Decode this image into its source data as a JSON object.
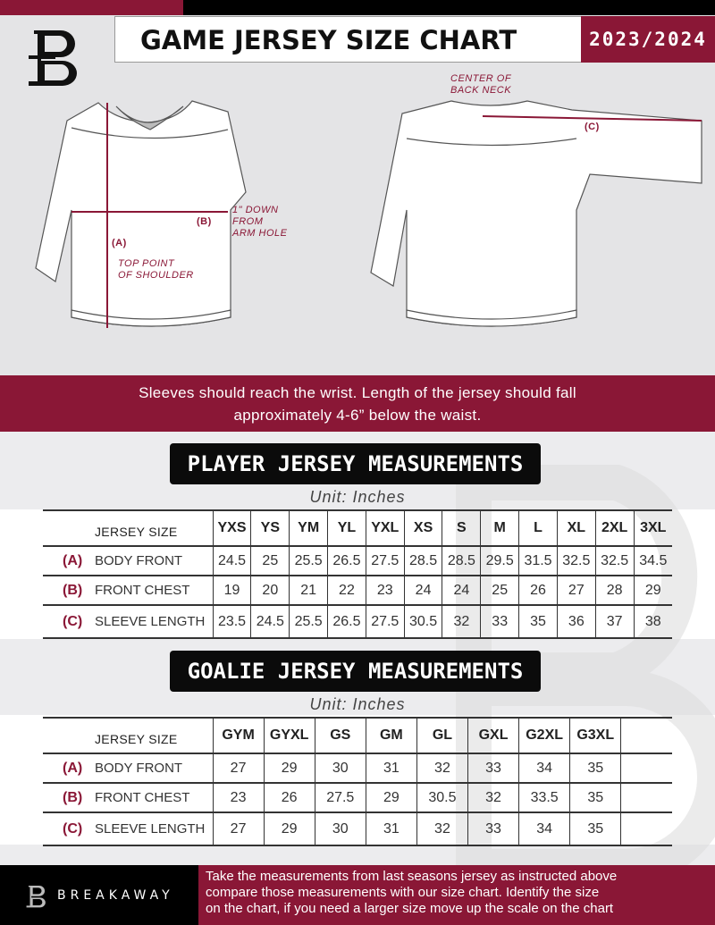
{
  "header": {
    "title": "GAME JERSEY SIZE CHART",
    "season": "2023/2024"
  },
  "diagram": {
    "center_back_neck": [
      "CENTER OF",
      "BACK NECK"
    ],
    "label_a": "(A)",
    "label_b": "(B)",
    "label_c": "(C)",
    "down_from_arm": [
      "1\" DOWN",
      "FROM",
      "ARM HOLE"
    ],
    "top_point": [
      "TOP POINT",
      "OF SHOULDER"
    ]
  },
  "banner": [
    "Sleeves should reach the wrist. Length of the jersey should fall",
    "approximately 4-6” below the waist."
  ],
  "player": {
    "title": "PLAYER JERSEY MEASUREMENTS",
    "unit": "Unit: Inches",
    "size_header": "JERSEY SIZE",
    "sizes": [
      "YXS",
      "YS",
      "YM",
      "YL",
      "YXL",
      "XS",
      "S",
      "M",
      "L",
      "XL",
      "2XL",
      "3XL"
    ],
    "rows": [
      {
        "tag": "(A)",
        "label": "BODY FRONT",
        "values": [
          "24.5",
          "25",
          "25.5",
          "26.5",
          "27.5",
          "28.5",
          "28.5",
          "29.5",
          "31.5",
          "32.5",
          "32.5",
          "34.5"
        ]
      },
      {
        "tag": "(B)",
        "label": "FRONT CHEST",
        "values": [
          "19",
          "20",
          "21",
          "22",
          "23",
          "24",
          "24",
          "25",
          "26",
          "27",
          "28",
          "29"
        ]
      },
      {
        "tag": "(C)",
        "label": "SLEEVE LENGTH",
        "values": [
          "23.5",
          "24.5",
          "25.5",
          "26.5",
          "27.5",
          "30.5",
          "32",
          "33",
          "35",
          "36",
          "37",
          "38"
        ]
      }
    ]
  },
  "goalie": {
    "title": "GOALIE JERSEY MEASUREMENTS",
    "unit": "Unit: Inches",
    "size_header": "JERSEY SIZE",
    "sizes": [
      "GYM",
      "GYXL",
      "GS",
      "GM",
      "GL",
      "GXL",
      "G2XL",
      "G3XL",
      ""
    ],
    "rows": [
      {
        "tag": "(A)",
        "label": "BODY FRONT",
        "values": [
          "27",
          "29",
          "30",
          "31",
          "32",
          "33",
          "34",
          "35",
          ""
        ]
      },
      {
        "tag": "(B)",
        "label": "FRONT CHEST",
        "values": [
          "23",
          "26",
          "27.5",
          "29",
          "30.5",
          "32",
          "33.5",
          "35",
          ""
        ]
      },
      {
        "tag": "(C)",
        "label": "SLEEVE LENGTH",
        "values": [
          "27",
          "29",
          "30",
          "31",
          "32",
          "33",
          "34",
          "35",
          ""
        ]
      }
    ]
  },
  "footer": {
    "brand": "BREAKAWAY",
    "text": [
      "Take the measurements from last seasons jersey as instructed above",
      "compare those measurements  with our size chart. Identify the size",
      "on the chart, if you need a larger size move up the scale on the chart"
    ]
  },
  "colors": {
    "accent": "#8a1736",
    "dark": "#000000",
    "background": "#e4e4e6"
  }
}
